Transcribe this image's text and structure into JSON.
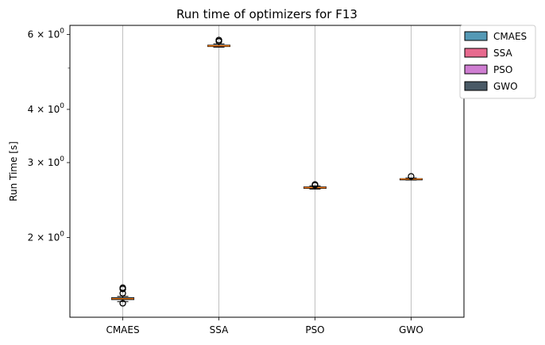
{
  "chart_data": {
    "type": "box",
    "title": "Run time of optimizers for F13",
    "xlabel": "",
    "ylabel": "Run Time [s]",
    "y_scale": "log",
    "ylim": [
      1.3,
      6.3
    ],
    "y_ticks": [
      {
        "value": 2,
        "label_base": "2 × 10",
        "label_exp": "0"
      },
      {
        "value": 3,
        "label_base": "3 × 10",
        "label_exp": "0"
      },
      {
        "value": 4,
        "label_base": "4 × 10",
        "label_exp": "0"
      },
      {
        "value": 6,
        "label_base": "6 × 10",
        "label_exp": "0"
      }
    ],
    "y_minor_ticks": [
      5
    ],
    "grid": "x-major",
    "legend_position": "upper-right outside",
    "categories": [
      "CMAES",
      "SSA",
      "PSO",
      "GWO"
    ],
    "series": [
      {
        "name": "CMAES",
        "color": "#5599b5",
        "whisker_low": 1.415,
        "q1": 1.43,
        "median": 1.437,
        "q3": 1.445,
        "whisker_high": 1.455,
        "outliers": [
          1.402,
          1.48,
          1.515,
          1.525
        ]
      },
      {
        "name": "SSA",
        "color": "#e86a8f",
        "whisker_low": 5.6,
        "q1": 5.62,
        "median": 5.64,
        "q3": 5.66,
        "whisker_high": 5.7,
        "outliers": [
          5.78,
          5.82
        ]
      },
      {
        "name": "PSO",
        "color": "#cf7ed2",
        "whisker_low": 2.6,
        "q1": 2.61,
        "median": 2.62,
        "q3": 2.63,
        "whisker_high": 2.645,
        "outliers": [
          2.655,
          2.665
        ]
      },
      {
        "name": "GWO",
        "color": "#4a5a66",
        "whisker_low": 2.73,
        "q1": 2.74,
        "median": 2.745,
        "q3": 2.75,
        "whisker_high": 2.76,
        "outliers": [
          2.785
        ]
      }
    ]
  }
}
